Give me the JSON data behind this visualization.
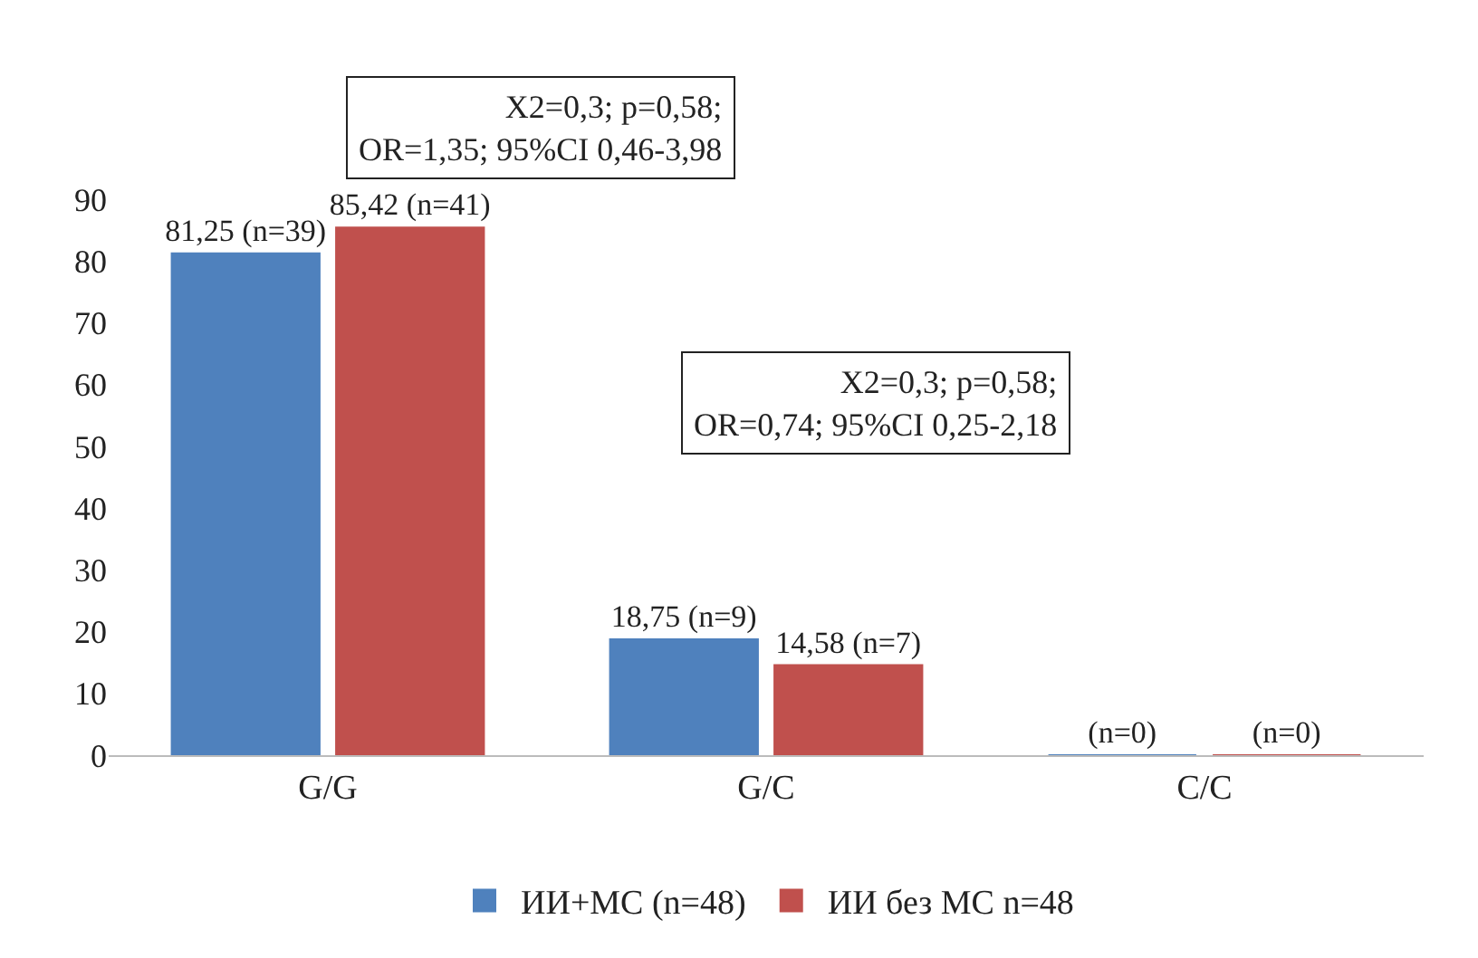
{
  "chart_data": {
    "type": "bar",
    "categories": [
      "G/G",
      "G/C",
      "C/C"
    ],
    "series": [
      {
        "name": "ИИ+МС (n=48)",
        "color": "#4f81bd",
        "values": [
          81.25,
          18.75,
          0
        ],
        "value_labels": [
          "81,25 (n=39)",
          "18,75 (n=9)",
          "(n=0)"
        ]
      },
      {
        "name": "ИИ без МС n=48",
        "color": "#c0504d",
        "values": [
          85.42,
          14.58,
          0
        ],
        "value_labels": [
          "85,42 (n=41)",
          "14,58 (n=7)",
          "(n=0)"
        ]
      }
    ],
    "ylim": [
      0,
      90
    ],
    "yticks": [
      0,
      10,
      20,
      30,
      40,
      50,
      60,
      70,
      80,
      90
    ],
    "grid": false,
    "legend": "bottom",
    "annotations": [
      "X2=0,3; p=0,58;\nOR=1,35; 95%CI 0,46-3,98",
      "X2=0,3; p=0,58;\nOR=0,74; 95%CI 0,25-2,18"
    ]
  }
}
